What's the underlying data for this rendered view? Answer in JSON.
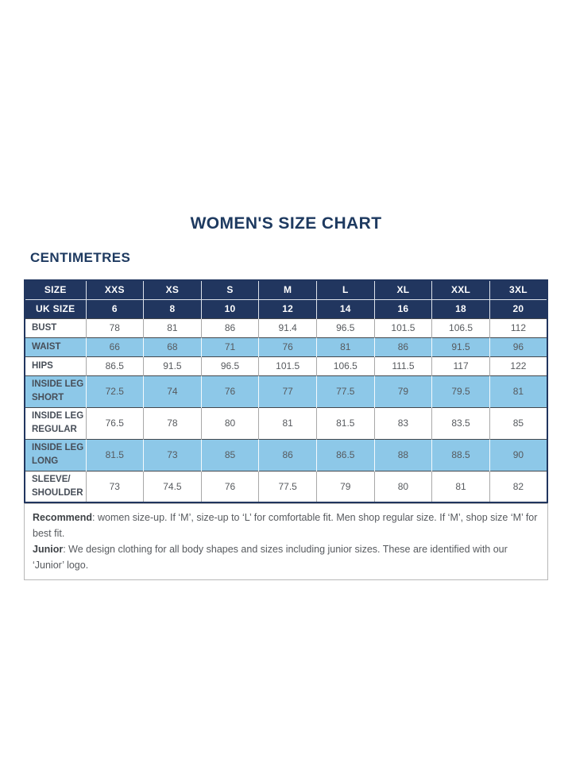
{
  "page": {
    "title": "WOMEN'S SIZE CHART",
    "unit_heading": "CENTIMETRES"
  },
  "colors": {
    "navy_header": "#21365f",
    "highlight_blue": "#8dc8e8",
    "heading_text": "#1e3a60"
  },
  "table": {
    "header_rows": [
      {
        "label": "SIZE",
        "values": [
          "XXS",
          "XS",
          "S",
          "M",
          "L",
          "XL",
          "XXL",
          "3XL"
        ]
      },
      {
        "label": "UK SIZE",
        "values": [
          "6",
          "8",
          "10",
          "12",
          "14",
          "16",
          "18",
          "20"
        ]
      }
    ],
    "rows": [
      {
        "label": "BUST",
        "values": [
          "78",
          "81",
          "86",
          "91.4",
          "96.5",
          "101.5",
          "106.5",
          "112"
        ],
        "highlight": false,
        "tall": false
      },
      {
        "label": "WAIST",
        "values": [
          "66",
          "68",
          "71",
          "76",
          "81",
          "86",
          "91.5",
          "96"
        ],
        "highlight": true,
        "tall": false
      },
      {
        "label": "HIPS",
        "values": [
          "86.5",
          "91.5",
          "96.5",
          "101.5",
          "106.5",
          "111.5",
          "117",
          "122"
        ],
        "highlight": false,
        "tall": false
      },
      {
        "label": "INSIDE LEG\nSHORT",
        "values": [
          "72.5",
          "74",
          "76",
          "77",
          "77.5",
          "79",
          "79.5",
          "81"
        ],
        "highlight": true,
        "tall": true
      },
      {
        "label": "INSIDE LEG\nREGULAR",
        "values": [
          "76.5",
          "78",
          "80",
          "81",
          "81.5",
          "83",
          "83.5",
          "85"
        ],
        "highlight": false,
        "tall": true
      },
      {
        "label": "INSIDE LEG\nLONG",
        "values": [
          "81.5",
          "73",
          "85",
          "86",
          "86.5",
          "88",
          "88.5",
          "90"
        ],
        "highlight": true,
        "tall": true
      },
      {
        "label": "SLEEVE/\nSHOULDER",
        "values": [
          "73",
          "74.5",
          "76",
          "77.5",
          "79",
          "80",
          "81",
          "82"
        ],
        "highlight": false,
        "tall": true
      }
    ]
  },
  "footnote": {
    "lines": [
      {
        "bold": "Recommend",
        "text": ": women size-up. If ‘M’, size-up to ‘L’ for comfortable fit. Men shop regular size. If ‘M’, shop size ‘M’ for best fit."
      },
      {
        "bold": "Junior",
        "text": ": We design clothing for all body shapes and sizes including junior sizes. These are identified with our ‘Junior’ logo."
      }
    ]
  }
}
